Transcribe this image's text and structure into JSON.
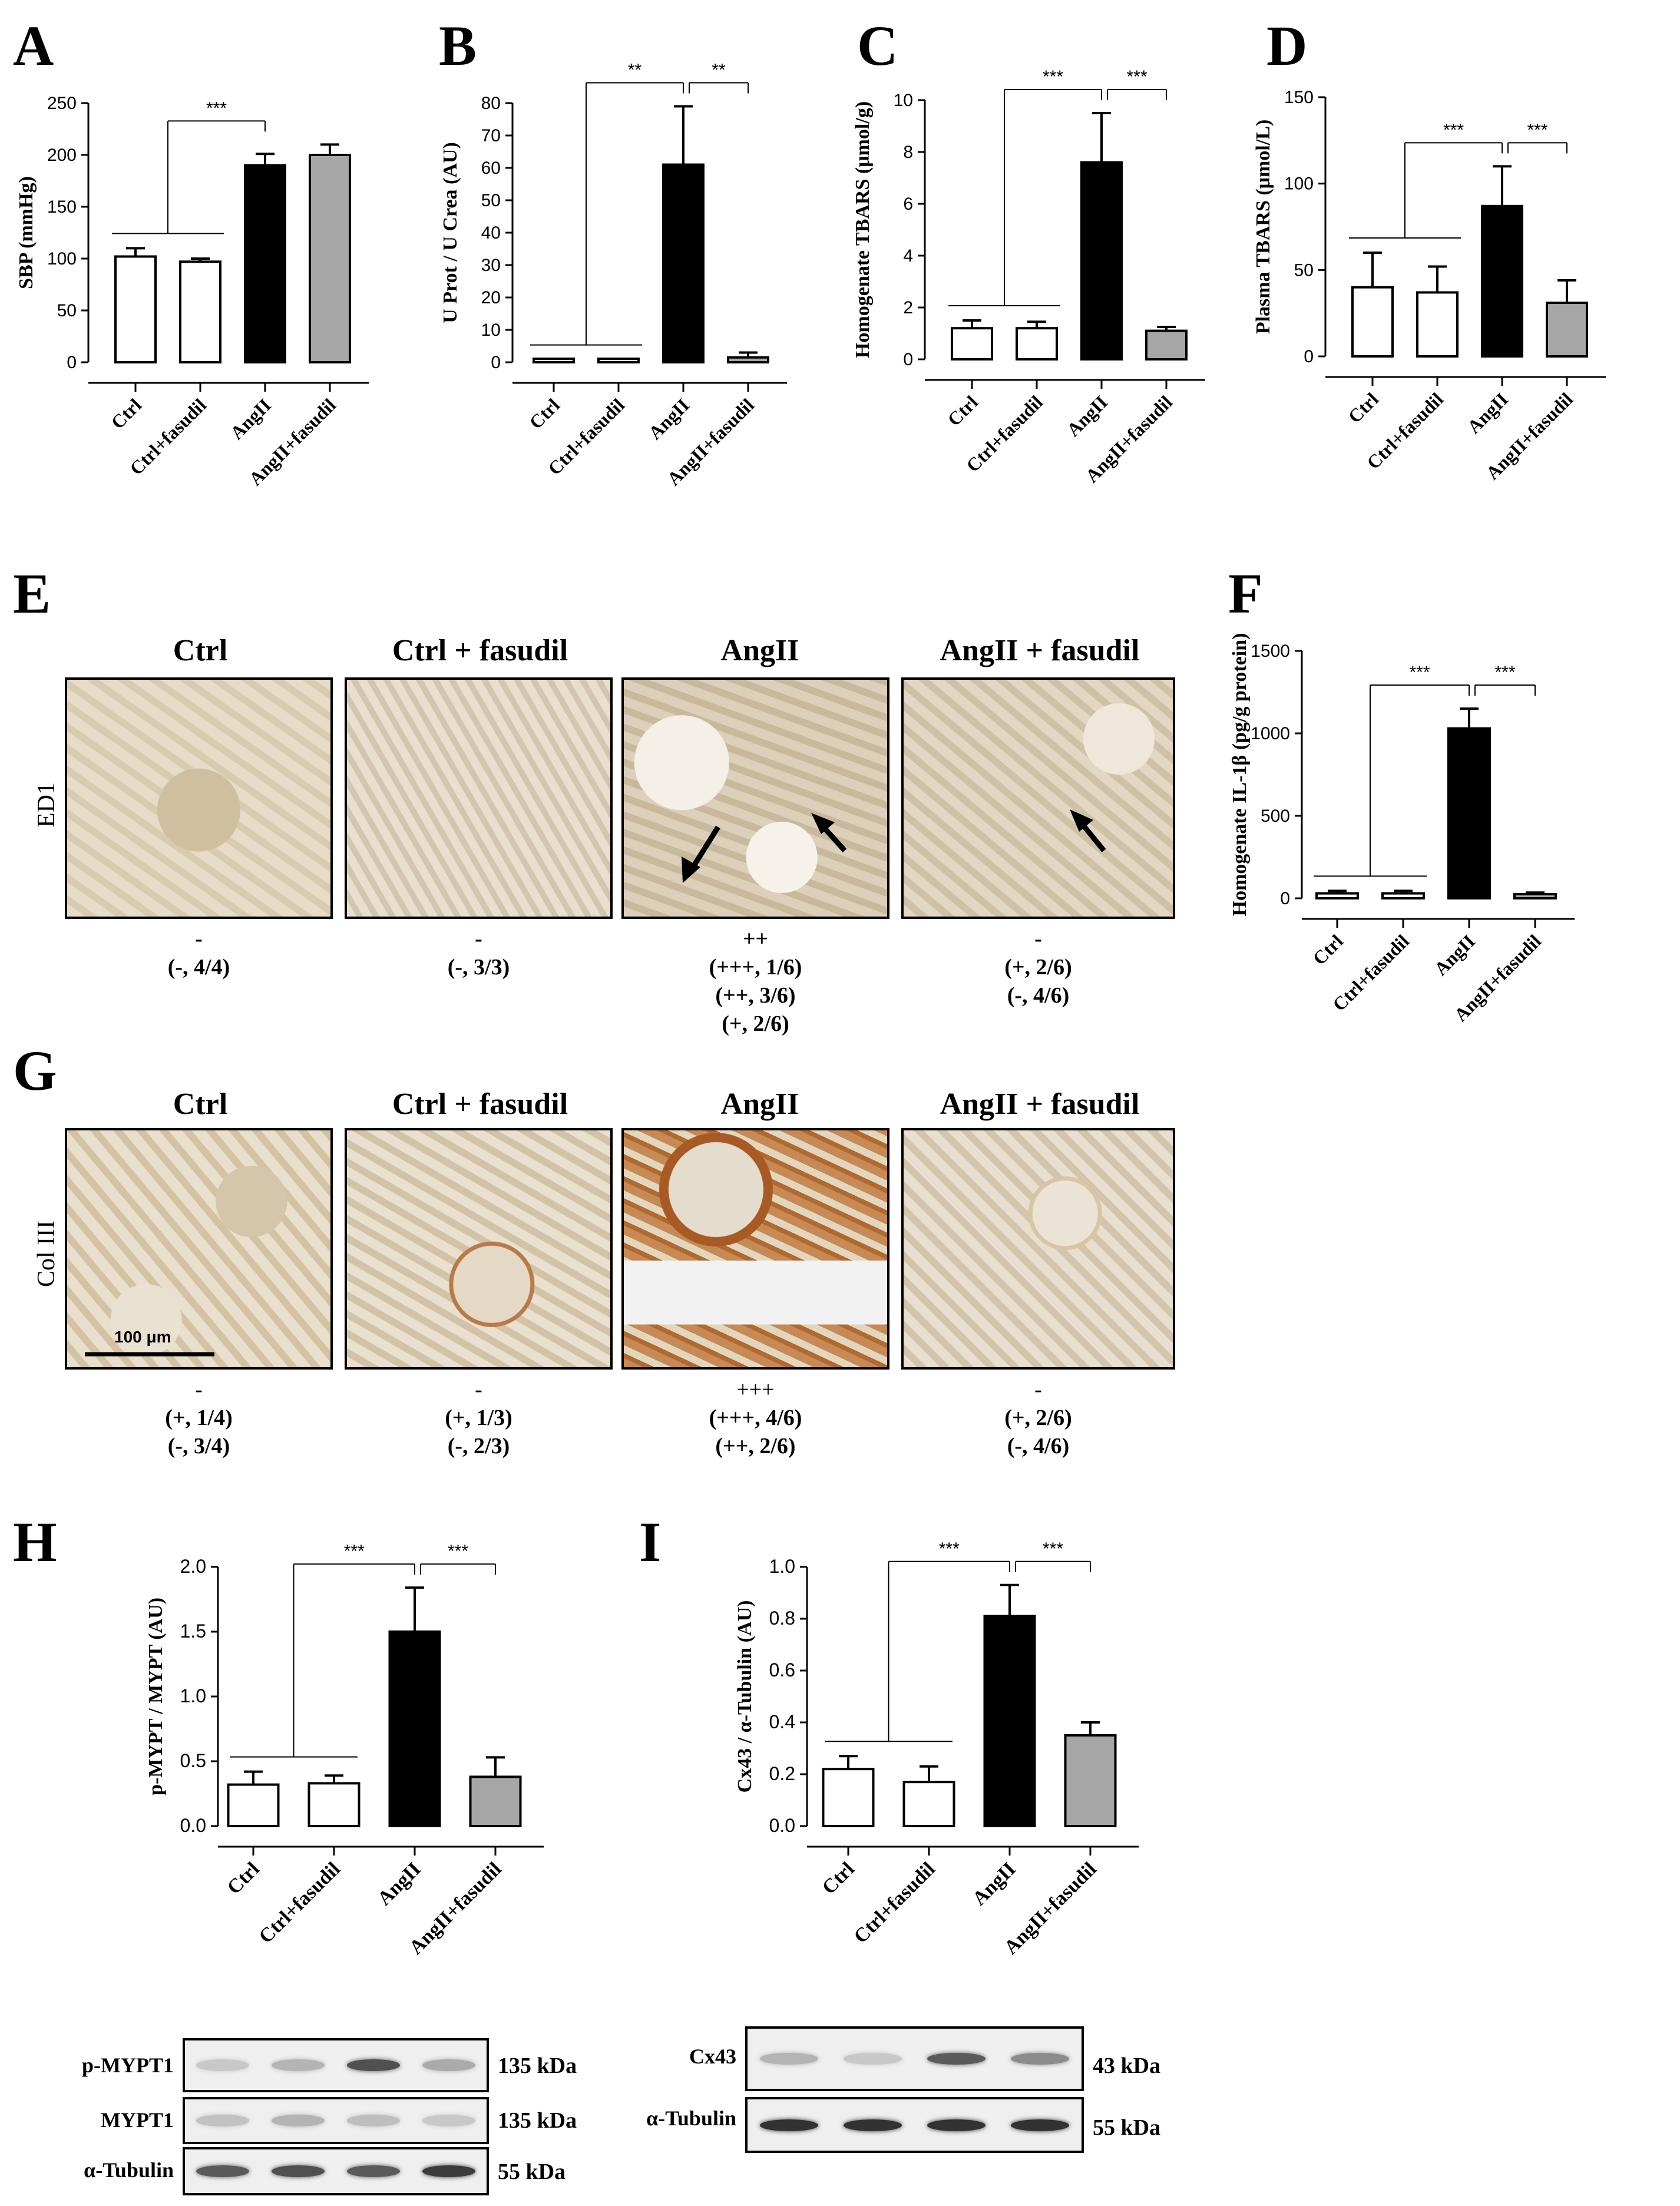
{
  "panels": {
    "A": "A",
    "B": "B",
    "C": "C",
    "D": "D",
    "E": "E",
    "F": "F",
    "G": "G",
    "H": "H",
    "I": "I"
  },
  "groups": [
    "Ctrl",
    "Ctrl+fasudil",
    "AngII",
    "AngII+fasudil"
  ],
  "colors": {
    "ctrl": "#ffffff",
    "angii": "#000000",
    "angii_fasudil": "#a6a6a6",
    "stain": "#b86a2e",
    "tissue": "#d9cbb0"
  },
  "chart_data": [
    {
      "id": "A",
      "type": "bar",
      "categories": [
        "Ctrl",
        "Ctrl+fasudil",
        "AngII",
        "AngII+fasudil"
      ],
      "values": [
        102,
        97,
        190,
        200
      ],
      "errors": [
        8,
        3,
        11,
        10
      ],
      "ylabel": "SBP (mmHg)",
      "ylim": [
        0,
        250
      ],
      "yticks": [
        0,
        50,
        100,
        150,
        200,
        250
      ],
      "fills": [
        "#ffffff",
        "#ffffff",
        "#000000",
        "#a6a6a6"
      ],
      "sig": [
        {
          "label": "***",
          "from": [
            0,
            1
          ],
          "to": 2
        }
      ]
    },
    {
      "id": "B",
      "type": "bar",
      "categories": [
        "Ctrl",
        "Ctrl+fasudil",
        "AngII",
        "AngII+fasudil"
      ],
      "values": [
        0.5,
        0.5,
        61,
        1.5
      ],
      "errors": [
        0.3,
        0.3,
        18,
        1.5
      ],
      "ylabel": "U Prot / U Crea (AU)",
      "ylim": [
        0,
        80
      ],
      "yticks": [
        0,
        10,
        20,
        30,
        40,
        50,
        60,
        70,
        80
      ],
      "fills": [
        "#ffffff",
        "#ffffff",
        "#000000",
        "#a6a6a6"
      ],
      "sig": [
        {
          "label": "**",
          "from": [
            0,
            1
          ],
          "to": 2
        },
        {
          "label": "**",
          "from": [
            2
          ],
          "to": 3
        }
      ]
    },
    {
      "id": "C",
      "type": "bar",
      "categories": [
        "Ctrl",
        "Ctrl+fasudil",
        "AngII",
        "AngII+fasudil"
      ],
      "values": [
        1.2,
        1.2,
        7.6,
        1.1
      ],
      "errors": [
        0.3,
        0.25,
        1.9,
        0.15
      ],
      "ylabel": "Homogenate TBARS (μmol/g)",
      "ylim": [
        0,
        10
      ],
      "yticks": [
        0,
        2,
        4,
        6,
        8,
        10
      ],
      "fills": [
        "#ffffff",
        "#ffffff",
        "#000000",
        "#a6a6a6"
      ],
      "sig": [
        {
          "label": "***",
          "from": [
            0,
            1
          ],
          "to": 2
        },
        {
          "label": "***",
          "from": [
            2
          ],
          "to": 3
        }
      ]
    },
    {
      "id": "D",
      "type": "bar",
      "categories": [
        "Ctrl",
        "Ctrl+fasudil",
        "AngII",
        "AngII+fasudil"
      ],
      "values": [
        40,
        37,
        87,
        31
      ],
      "errors": [
        20,
        15,
        23,
        13
      ],
      "ylabel": "Plasma TBARS (μmol/L)",
      "ylim": [
        0,
        150
      ],
      "yticks": [
        0,
        50,
        100,
        150
      ],
      "fills": [
        "#ffffff",
        "#ffffff",
        "#000000",
        "#a6a6a6"
      ],
      "sig": [
        {
          "label": "***",
          "from": [
            0,
            1
          ],
          "to": 2
        },
        {
          "label": "***",
          "from": [
            2
          ],
          "to": 3
        }
      ]
    },
    {
      "id": "F",
      "type": "bar",
      "categories": [
        "Ctrl",
        "Ctrl+fasudil",
        "AngII",
        "AngII+fasudil"
      ],
      "values": [
        30,
        30,
        1030,
        25
      ],
      "errors": [
        15,
        15,
        120,
        10
      ],
      "ylabel": "Homogenate IL-1β (pg/g protein)",
      "ylim": [
        0,
        1500
      ],
      "yticks": [
        0,
        500,
        1000,
        1500
      ],
      "fills": [
        "#ffffff",
        "#ffffff",
        "#000000",
        "#a6a6a6"
      ],
      "sig": [
        {
          "label": "***",
          "from": [
            0,
            1
          ],
          "to": 2
        },
        {
          "label": "***",
          "from": [
            2
          ],
          "to": 3
        }
      ]
    },
    {
      "id": "H",
      "type": "bar",
      "categories": [
        "Ctrl",
        "Ctrl+fasudil",
        "AngII",
        "AngII+fasudil"
      ],
      "values": [
        0.32,
        0.33,
        1.5,
        0.38
      ],
      "errors": [
        0.1,
        0.06,
        0.34,
        0.15
      ],
      "ylabel": "p-MYPT / MYPT (AU)",
      "ylim": [
        0,
        2.0
      ],
      "yticks": [
        "0.0",
        "0.5",
        "1.0",
        "1.5",
        "2.0"
      ],
      "fills": [
        "#ffffff",
        "#ffffff",
        "#000000",
        "#a6a6a6"
      ],
      "sig": [
        {
          "label": "***",
          "from": [
            0,
            1
          ],
          "to": 2
        },
        {
          "label": "***",
          "from": [
            2
          ],
          "to": 3
        }
      ]
    },
    {
      "id": "I",
      "type": "bar",
      "categories": [
        "Ctrl",
        "Ctrl+fasudil",
        "AngII",
        "AngII+fasudil"
      ],
      "values": [
        0.22,
        0.17,
        0.81,
        0.35
      ],
      "errors": [
        0.05,
        0.06,
        0.12,
        0.05
      ],
      "ylabel": "Cx43 / α-Tubulin (AU)",
      "ylim": [
        0,
        1.0
      ],
      "yticks": [
        "0.0",
        "0.2",
        "0.4",
        "0.6",
        "0.8",
        "1.0"
      ],
      "fills": [
        "#ffffff",
        "#ffffff",
        "#000000",
        "#a6a6a6"
      ],
      "sig": [
        {
          "label": "***",
          "from": [
            0,
            1
          ],
          "to": 2
        },
        {
          "label": "***",
          "from": [
            2
          ],
          "to": 3
        }
      ]
    }
  ],
  "micro_titles": [
    "Ctrl",
    "Ctrl + fasudil",
    "AngII",
    "AngII + fasudil"
  ],
  "row_E": {
    "label": "ED1",
    "scores": [
      {
        "main": "-",
        "lines": [
          "(-, 4/4)"
        ]
      },
      {
        "main": "-",
        "lines": [
          "(-, 3/3)"
        ]
      },
      {
        "main": "++",
        "lines": [
          "(+++, 1/6)",
          "(++, 3/6)",
          "(+, 2/6)"
        ]
      },
      {
        "main": "-",
        "lines": [
          "(+, 2/6)",
          "(-, 4/6)"
        ]
      }
    ]
  },
  "row_G": {
    "label": "Col III",
    "scale_bar": "100 μm",
    "scores": [
      {
        "main": "-",
        "lines": [
          "(+, 1/4)",
          "(-, 3/4)"
        ]
      },
      {
        "main": "-",
        "lines": [
          "(+, 1/3)",
          "(-, 2/3)"
        ]
      },
      {
        "main": "+++",
        "lines": [
          "(+++, 4/6)",
          "(++, 2/6)"
        ]
      },
      {
        "main": "-",
        "lines": [
          "(+, 2/6)",
          "(-, 4/6)"
        ]
      }
    ]
  },
  "blots_H": {
    "rows": [
      {
        "label": "p-MYPT1",
        "kda": "135 kDa",
        "intensity": [
          0.15,
          0.25,
          0.75,
          0.3
        ]
      },
      {
        "label": "MYPT1",
        "kda": "135 kDa",
        "intensity": [
          0.18,
          0.25,
          0.2,
          0.15
        ]
      },
      {
        "label": "α-Tubulin",
        "kda": "55 kDa",
        "intensity": [
          0.7,
          0.75,
          0.7,
          0.85
        ]
      }
    ]
  },
  "blots_I": {
    "rows": [
      {
        "label": "Cx43",
        "kda": "43 kDa",
        "intensity": [
          0.25,
          0.15,
          0.7,
          0.45
        ]
      },
      {
        "label": "α-Tubulin",
        "kda": "55 kDa",
        "intensity": [
          0.9,
          0.9,
          0.9,
          0.9
        ]
      }
    ]
  }
}
